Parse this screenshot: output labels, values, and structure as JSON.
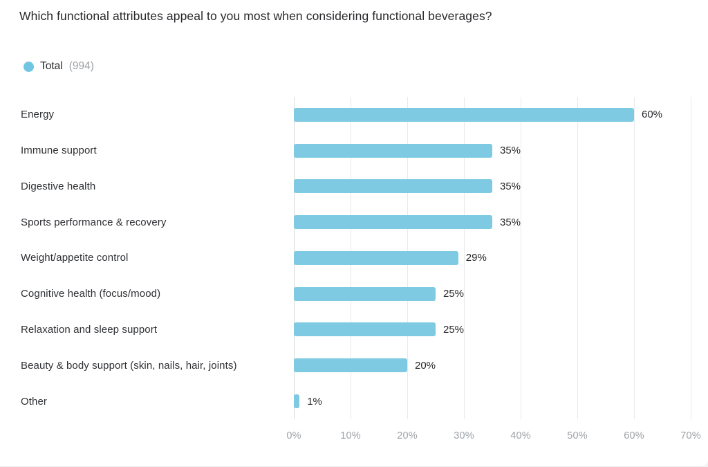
{
  "title": "Which functional attributes appeal to you most when considering functional beverages?",
  "legend": {
    "label": "Total",
    "count": "(994)",
    "dot_color": "#70c6e2"
  },
  "colors": {
    "bar": "#7dcae2",
    "grid": "#e9e9e9",
    "axis_line": "#d7d9da",
    "text_dark": "#26282b",
    "text_gray": "#9da1a6"
  },
  "chart_data": {
    "type": "bar",
    "orientation": "horizontal",
    "title": "Which functional attributes appeal to you most when considering functional beverages?",
    "series_name": "Total (994)",
    "categories": [
      "Energy",
      "Immune support",
      "Digestive health",
      "Sports performance & recovery",
      "Weight/appetite control",
      "Cognitive health (focus/mood)",
      "Relaxation and sleep support",
      "Beauty & body support (skin, nails, hair, joints)",
      "Other"
    ],
    "values": [
      60,
      35,
      35,
      35,
      29,
      25,
      25,
      20,
      1
    ],
    "value_labels": [
      "60%",
      "35%",
      "35%",
      "35%",
      "29%",
      "25%",
      "25%",
      "20%",
      "1%"
    ],
    "xlim": [
      0,
      70
    ],
    "x_ticks": [
      "0%",
      "10%",
      "20%",
      "30%",
      "40%",
      "50%",
      "60%",
      "70%"
    ],
    "x_tick_values": [
      0,
      10,
      20,
      30,
      40,
      50,
      60,
      70
    ],
    "grid": true,
    "legend_position": "top-left"
  }
}
